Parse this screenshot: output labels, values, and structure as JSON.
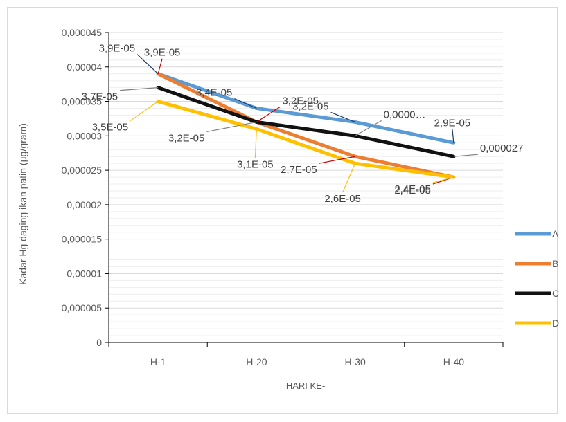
{
  "chart_data": {
    "type": "line",
    "title": "",
    "xlabel": "HARI KE-",
    "ylabel": "Kadar Hg  daging ikan patin  (µg/gram)",
    "categories": [
      "H-1",
      "H-20",
      "H-30",
      "H-40"
    ],
    "ylim": [
      0,
      4.5e-05
    ],
    "y_ticks": [
      0,
      5e-06,
      1e-05,
      1.5e-05,
      2e-05,
      2.5e-05,
      3e-05,
      3.5e-05,
      4e-05,
      4.5e-05
    ],
    "y_tick_labels": [
      "0",
      "0,000005",
      "0,00001",
      "0,000015",
      "0,00002",
      "0,000025",
      "0,00003",
      "0,000035",
      "0,00004",
      "0,000045"
    ],
    "grid": true,
    "legend_position": "right",
    "series": [
      {
        "name": "A",
        "color": "#5b9bd5",
        "values": [
          3.9e-05,
          3.4e-05,
          3.2e-05,
          2.9e-05
        ],
        "data_labels": [
          "3,9E-05",
          "3,4E-05",
          "3,2E-05",
          "2,9E-05"
        ]
      },
      {
        "name": "B",
        "color": "#ed7d31",
        "values": [
          3.9e-05,
          3.2e-05,
          2.7e-05,
          2.4e-05
        ],
        "data_labels": [
          "3,9E-05",
          "3,2E-05",
          "2,7E-05",
          "2,4E-05"
        ]
      },
      {
        "name": "C",
        "color": "#111111",
        "values": [
          3.7e-05,
          3.2e-05,
          3e-05,
          2.7e-05
        ],
        "data_labels": [
          "3,7E-05",
          "3,2E-05",
          "0,0000…",
          "0,000027"
        ]
      },
      {
        "name": "D",
        "color": "#ffc000",
        "values": [
          3.5e-05,
          3.1e-05,
          2.6e-05,
          2.4e-05
        ],
        "data_labels": [
          "3,5E-05",
          "3,1E-05",
          "2,6E-05",
          "2,4E-05"
        ]
      }
    ]
  }
}
